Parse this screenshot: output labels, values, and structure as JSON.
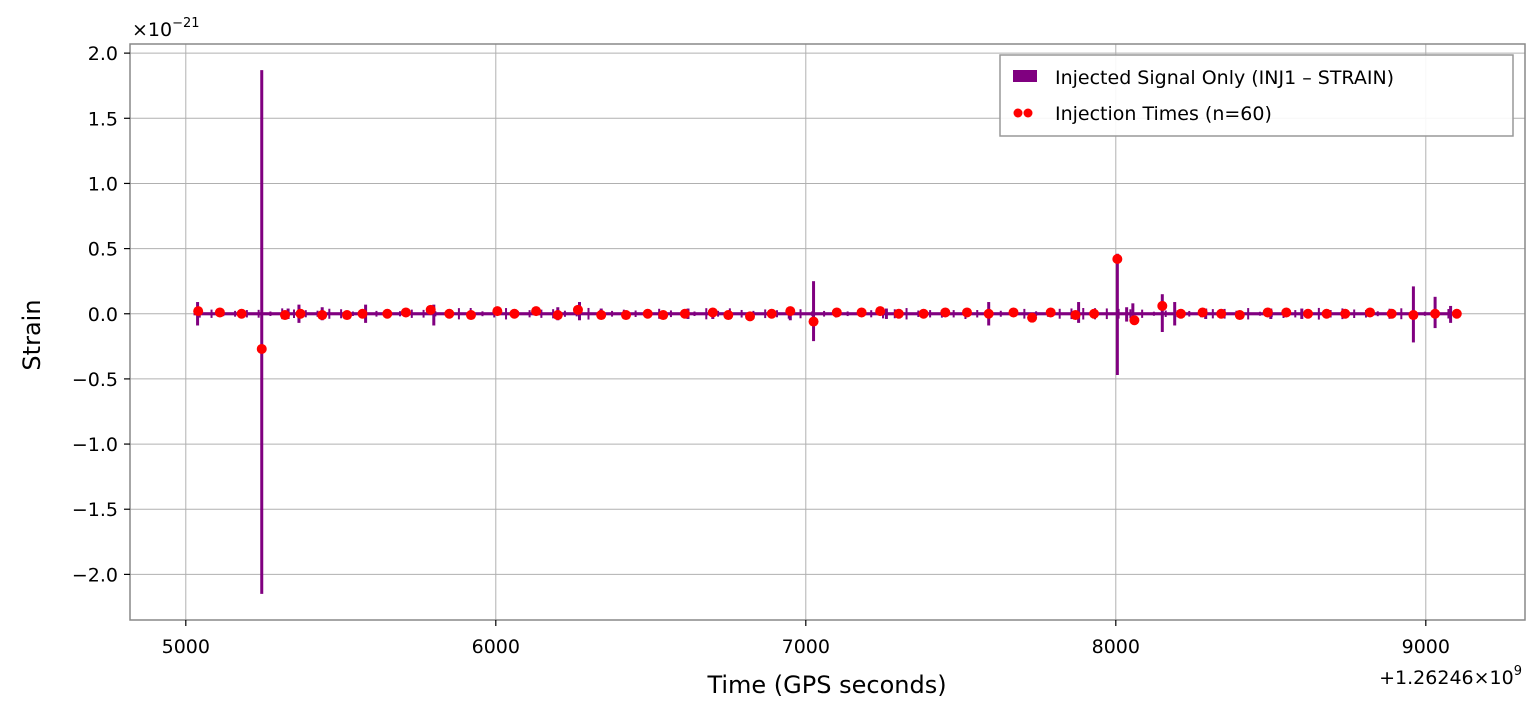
{
  "chart_data": {
    "type": "line",
    "xlabel": "Time (GPS seconds)",
    "ylabel": "Strain",
    "x_offset_label": "+1.26246×10",
    "x_offset_exp": "9",
    "y_scale_label": "×10",
    "y_scale_exp": "−21",
    "xlim": [
      4820,
      9320
    ],
    "ylim": [
      -2.35,
      2.07
    ],
    "x_ticks": [
      5000,
      6000,
      7000,
      8000,
      9000
    ],
    "x_tick_labels": [
      "5000",
      "6000",
      "7000",
      "8000",
      "9000"
    ],
    "y_ticks": [
      2.0,
      1.5,
      1.0,
      0.5,
      0.0,
      -0.5,
      -1.0,
      -1.5,
      -2.0
    ],
    "y_tick_labels": [
      "2.0",
      "1.5",
      "1.0",
      "0.5",
      "0.0",
      "−0.5",
      "−1.0",
      "−1.5",
      "−2.0"
    ],
    "grid": true,
    "legend_position": "top-right",
    "colors": {
      "signal": "#800080",
      "injections": "#ff0000"
    },
    "series": [
      {
        "name": "Injected Signal Only (INJ1 – STRAIN)",
        "kind": "line",
        "x_range": [
          5025,
          9110
        ],
        "baseline_band": 0.012,
        "spikes": [
          {
            "x": 5038,
            "max": 0.09,
            "min": -0.09
          },
          {
            "x": 5245,
            "max": 1.87,
            "min": -2.15
          },
          {
            "x": 5330,
            "max": 0.04,
            "min": -0.04
          },
          {
            "x": 5365,
            "max": 0.07,
            "min": -0.07
          },
          {
            "x": 5440,
            "max": 0.05,
            "min": -0.05
          },
          {
            "x": 5580,
            "max": 0.07,
            "min": -0.07
          },
          {
            "x": 5800,
            "max": 0.07,
            "min": -0.09
          },
          {
            "x": 6200,
            "max": 0.05,
            "min": -0.05
          },
          {
            "x": 6270,
            "max": 0.09,
            "min": -0.05
          },
          {
            "x": 6340,
            "max": 0.04,
            "min": -0.04
          },
          {
            "x": 6620,
            "max": 0.04,
            "min": -0.04
          },
          {
            "x": 6700,
            "max": 0.04,
            "min": -0.04
          },
          {
            "x": 6950,
            "max": 0.05,
            "min": -0.05
          },
          {
            "x": 7025,
            "max": 0.25,
            "min": -0.21
          },
          {
            "x": 7260,
            "max": 0.04,
            "min": -0.04
          },
          {
            "x": 7590,
            "max": 0.09,
            "min": -0.09
          },
          {
            "x": 7880,
            "max": 0.09,
            "min": -0.07
          },
          {
            "x": 8005,
            "max": 0.46,
            "min": -0.47
          },
          {
            "x": 8035,
            "max": 0.05,
            "min": -0.06
          },
          {
            "x": 8055,
            "max": 0.08,
            "min": -0.07
          },
          {
            "x": 8150,
            "max": 0.15,
            "min": -0.14
          },
          {
            "x": 8190,
            "max": 0.09,
            "min": -0.09
          },
          {
            "x": 8290,
            "max": 0.04,
            "min": -0.04
          },
          {
            "x": 8500,
            "max": 0.04,
            "min": -0.04
          },
          {
            "x": 8600,
            "max": 0.04,
            "min": -0.04
          },
          {
            "x": 8960,
            "max": 0.21,
            "min": -0.22
          },
          {
            "x": 9030,
            "max": 0.13,
            "min": -0.11
          },
          {
            "x": 9080,
            "max": 0.06,
            "min": -0.07
          }
        ]
      },
      {
        "name": "Injection Times (n=60)",
        "kind": "scatter",
        "points": [
          [
            5040,
            0.02
          ],
          [
            5110,
            0.01
          ],
          [
            5180,
            0.0
          ],
          [
            5245,
            -0.27
          ],
          [
            5320,
            -0.01
          ],
          [
            5370,
            0.0
          ],
          [
            5440,
            -0.01
          ],
          [
            5520,
            -0.01
          ],
          [
            5570,
            0.0
          ],
          [
            5650,
            0.0
          ],
          [
            5710,
            0.01
          ],
          [
            5790,
            0.03
          ],
          [
            5850,
            0.0
          ],
          [
            5920,
            -0.01
          ],
          [
            6005,
            0.02
          ],
          [
            6060,
            0.0
          ],
          [
            6130,
            0.02
          ],
          [
            6200,
            -0.01
          ],
          [
            6265,
            0.03
          ],
          [
            6340,
            -0.01
          ],
          [
            6420,
            -0.01
          ],
          [
            6490,
            0.0
          ],
          [
            6540,
            -0.01
          ],
          [
            6610,
            0.0
          ],
          [
            6700,
            0.01
          ],
          [
            6750,
            -0.01
          ],
          [
            6820,
            -0.02
          ],
          [
            6890,
            0.0
          ],
          [
            6950,
            0.02
          ],
          [
            7025,
            -0.06
          ],
          [
            7100,
            0.01
          ],
          [
            7180,
            0.01
          ],
          [
            7240,
            0.02
          ],
          [
            7300,
            0.0
          ],
          [
            7380,
            0.0
          ],
          [
            7450,
            0.01
          ],
          [
            7520,
            0.01
          ],
          [
            7590,
            0.0
          ],
          [
            7670,
            0.01
          ],
          [
            7730,
            -0.03
          ],
          [
            7790,
            0.01
          ],
          [
            7870,
            -0.01
          ],
          [
            7930,
            0.0
          ],
          [
            8005,
            0.42
          ],
          [
            8060,
            -0.05
          ],
          [
            8150,
            0.06
          ],
          [
            8210,
            0.0
          ],
          [
            8280,
            0.01
          ],
          [
            8340,
            0.0
          ],
          [
            8400,
            -0.01
          ],
          [
            8490,
            0.01
          ],
          [
            8550,
            0.01
          ],
          [
            8620,
            0.0
          ],
          [
            8680,
            0.0
          ],
          [
            8740,
            0.0
          ],
          [
            8820,
            0.01
          ],
          [
            8890,
            0.0
          ],
          [
            8960,
            -0.01
          ],
          [
            9030,
            0.0
          ],
          [
            9100,
            0.0
          ]
        ]
      }
    ]
  }
}
